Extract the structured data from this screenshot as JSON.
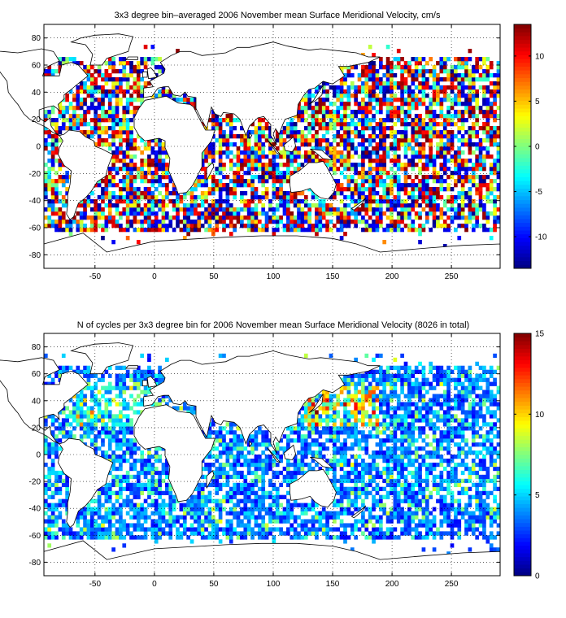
{
  "chart_data": [
    {
      "type": "heatmap",
      "title": "3x3 degree bin–averaged 2006 November mean Surface Meridional Velocity, cm/s",
      "xlabel": "",
      "ylabel": "",
      "xlim": [
        -93,
        291
      ],
      "ylim": [
        -90,
        90
      ],
      "xticks": [
        -50,
        0,
        50,
        100,
        150,
        200,
        250
      ],
      "yticks": [
        -80,
        -60,
        -40,
        -20,
        0,
        20,
        40,
        60,
        80
      ],
      "bin_size_deg": 3,
      "grid": true,
      "colormap": "jet",
      "colorbar": {
        "range": [
          -13.5,
          13.5
        ],
        "ticks": [
          -10,
          -5,
          0,
          5,
          10
        ],
        "placement": "right"
      }
    },
    {
      "type": "heatmap",
      "title": "N of cycles per 3x3 degree bin for 2006 November mean Surface Meridional Velocity (8026 in total)",
      "xlabel": "",
      "ylabel": "",
      "xlim": [
        -93,
        291
      ],
      "ylim": [
        -90,
        90
      ],
      "xticks": [
        -50,
        0,
        50,
        100,
        150,
        200,
        250
      ],
      "yticks": [
        -80,
        -60,
        -40,
        -20,
        0,
        20,
        40,
        60,
        80
      ],
      "bin_size_deg": 3,
      "grid": true,
      "colormap": "jet",
      "total_cycles": 8026,
      "colorbar": {
        "range": [
          0,
          15
        ],
        "ticks": [
          0,
          5,
          10,
          15
        ],
        "placement": "right"
      }
    }
  ]
}
